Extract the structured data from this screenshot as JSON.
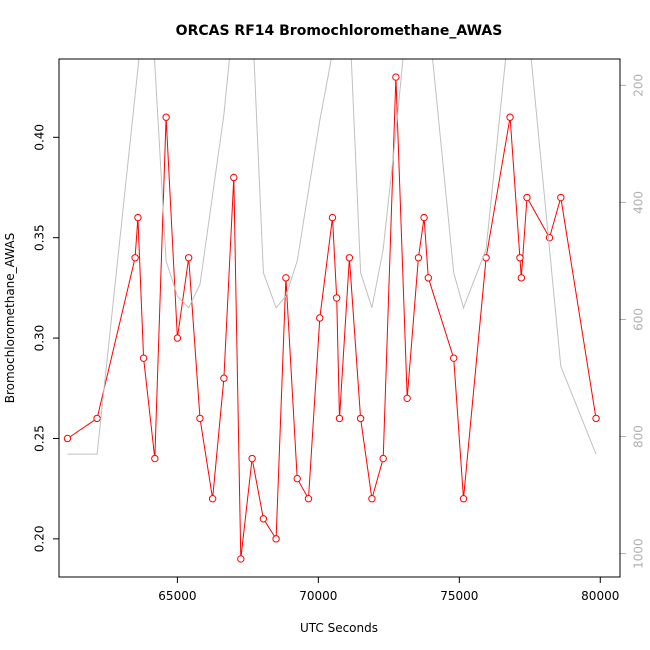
{
  "chart_data": {
    "type": "line",
    "title": "ORCAS RF14 Bromochloromethane_AWAS",
    "xlabel": "UTC Seconds",
    "ylabel": "Bromochloromethane_AWAS",
    "y2label": "",
    "xlim": [
      60800,
      80700
    ],
    "ylim": [
      0.181,
      0.439
    ],
    "y2lim": [
      1040,
      155
    ],
    "y2_reversed": true,
    "x_ticks": [
      65000,
      70000,
      75000,
      80000
    ],
    "y_ticks": [
      0.2,
      0.25,
      0.3,
      0.35,
      0.4
    ],
    "y2_ticks": [
      200,
      400,
      600,
      800,
      1000
    ],
    "grid": false,
    "series": [
      {
        "color": "#ff0000",
        "axis": "left",
        "marker": "open-circle",
        "x": [
          61100,
          62150,
          63500,
          63600,
          63800,
          64200,
          64600,
          65000,
          65400,
          65800,
          66250,
          66650,
          67000,
          67250,
          67650,
          68050,
          68500,
          68850,
          69250,
          69650,
          70050,
          70500,
          70650,
          70750,
          71100,
          71500,
          71900,
          72300,
          72750,
          73150,
          73550,
          73750,
          73900,
          74800,
          75150,
          75950,
          76800,
          77150,
          77200,
          77400,
          78200,
          78600,
          79850
        ],
        "values": [
          0.25,
          0.26,
          0.34,
          0.36,
          0.29,
          0.24,
          0.41,
          0.3,
          0.34,
          0.26,
          0.22,
          0.28,
          0.38,
          0.19,
          0.24,
          0.21,
          0.2,
          0.33,
          0.23,
          0.22,
          0.31,
          0.36,
          0.32,
          0.26,
          0.34,
          0.26,
          0.22,
          0.24,
          0.43,
          0.27,
          0.34,
          0.36,
          0.33,
          0.29,
          0.22,
          0.34,
          0.41,
          0.34,
          0.33,
          0.37,
          0.35,
          0.37,
          0.26
        ]
      },
      {
        "color": "#c0c0c0",
        "axis": "right",
        "marker": "none",
        "x": [
          61100,
          62150,
          63800,
          64100,
          64600,
          65000,
          65400,
          65800,
          66650,
          67000,
          67250,
          67650,
          68050,
          68500,
          68850,
          69250,
          69650,
          70050,
          70750,
          71100,
          71500,
          71900,
          72300,
          72750,
          73150,
          73550,
          73750,
          73900,
          74800,
          75150,
          75950,
          76800,
          77150,
          77400,
          78600,
          79850
        ],
        "values": [
          830,
          830,
          80,
          80,
          500,
          560,
          580,
          540,
          250,
          80,
          80,
          80,
          520,
          580,
          560,
          500,
          380,
          260,
          80,
          80,
          520,
          580,
          480,
          280,
          80,
          80,
          80,
          80,
          520,
          580,
          480,
          80,
          80,
          80,
          680,
          830
        ]
      }
    ]
  }
}
